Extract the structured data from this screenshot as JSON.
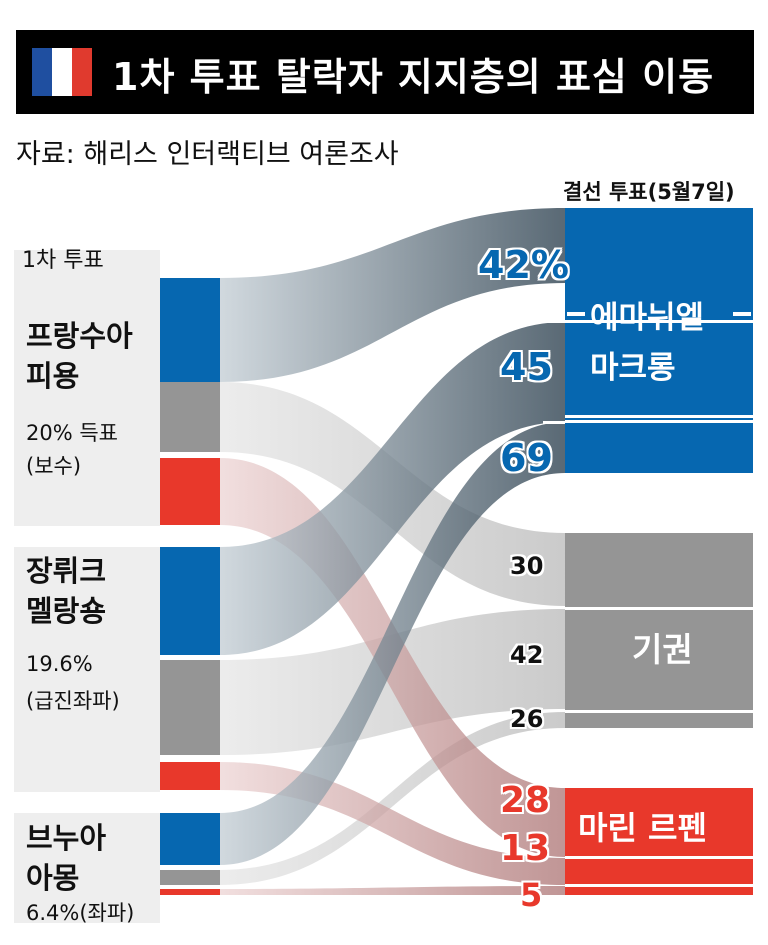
{
  "header": {
    "title": "1차 투표 탈락자 지지층의 표심 이동",
    "source": "자료: 해리스 인터랙티브 여론조사",
    "flag_colors": [
      "#1f4fa0",
      "#ffffff",
      "#e03a2e"
    ]
  },
  "chart_data": {
    "type": "sankey",
    "left_title": "1차 투표",
    "right_title": "결선 투표(5월7일)",
    "sources": [
      {
        "name_line1": "프랑수아",
        "name_line2": "피용",
        "share_line1": "20% 득표",
        "share_line2": "(보수)"
      },
      {
        "name_line1": "장뤼크",
        "name_line2": "멜랑숑",
        "share_line1": "19.6%",
        "share_line2": "(급진좌파)"
      },
      {
        "name_line1": "브누아",
        "name_line2": "아몽",
        "share_line1": "6.4%(좌파)",
        "share_line2": ""
      }
    ],
    "targets": [
      {
        "name_line1": "에마뉘엘",
        "name_line2": "마크롱",
        "color": "#0667b0"
      },
      {
        "name_line1": "기권",
        "name_line2": "",
        "color": "#959595"
      },
      {
        "name_line1": "마린 르펜",
        "name_line2": "",
        "color": "#e8382b"
      }
    ],
    "flows": [
      {
        "source": 0,
        "target": 0,
        "value": 42,
        "label": "42%"
      },
      {
        "source": 1,
        "target": 0,
        "value": 45,
        "label": "45"
      },
      {
        "source": 2,
        "target": 0,
        "value": 69,
        "label": "69"
      },
      {
        "source": 0,
        "target": 1,
        "value": 30,
        "label": "30"
      },
      {
        "source": 1,
        "target": 1,
        "value": 42,
        "label": "42"
      },
      {
        "source": 2,
        "target": 1,
        "value": 26,
        "label": "26"
      },
      {
        "source": 0,
        "target": 2,
        "value": 28,
        "label": "28"
      },
      {
        "source": 1,
        "target": 2,
        "value": 13,
        "label": "13"
      },
      {
        "source": 2,
        "target": 2,
        "value": 5,
        "label": "5"
      }
    ]
  }
}
